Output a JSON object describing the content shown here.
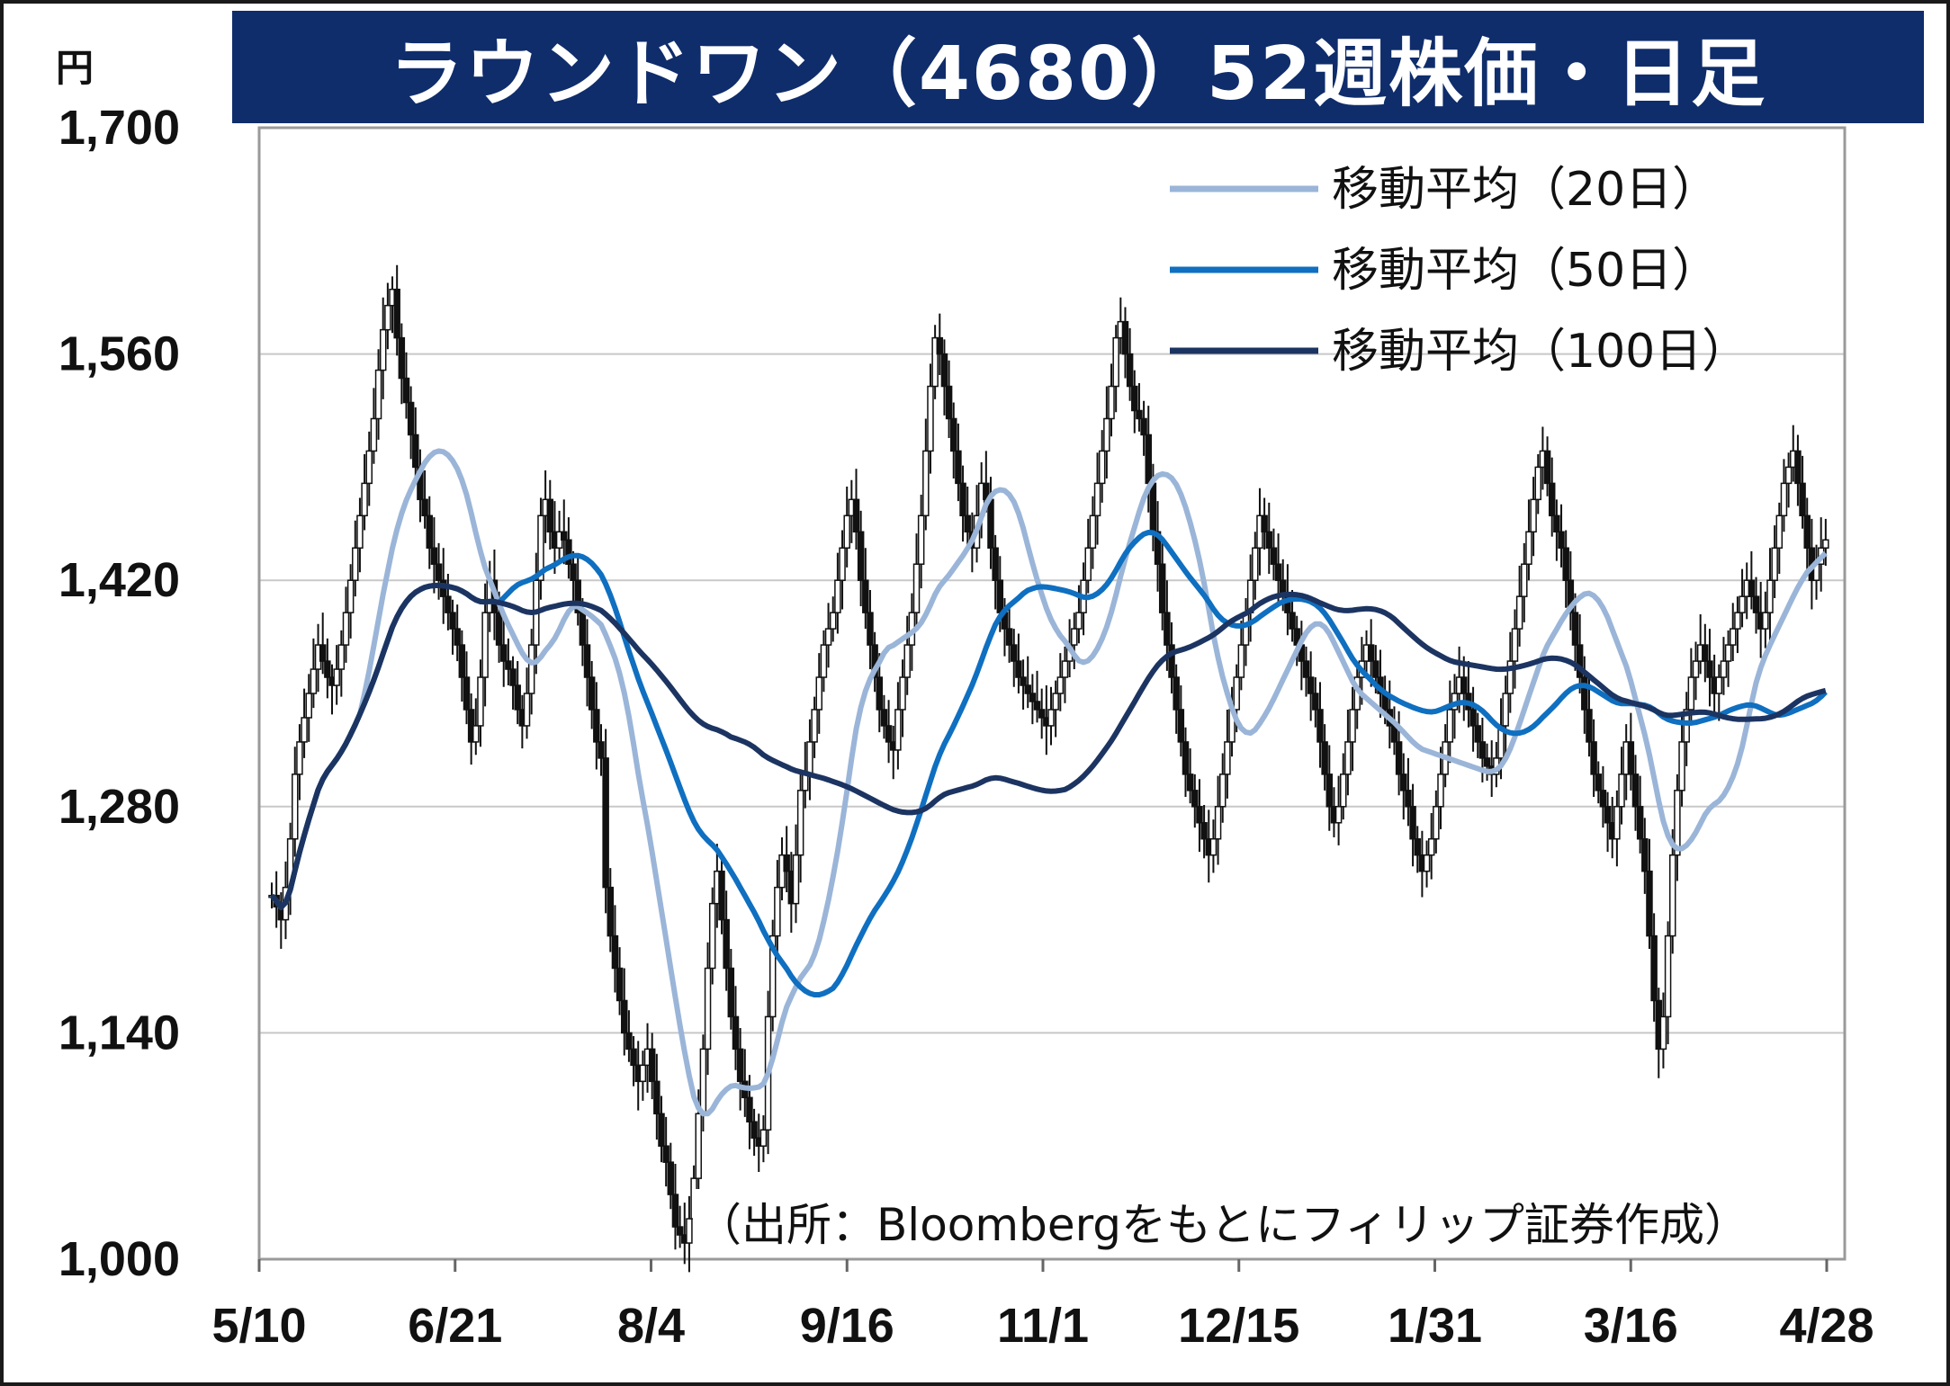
{
  "header": {
    "title": "ラウンドワン（4680）52週株価・日足",
    "unit": "円",
    "source": "（出所：Bloombergをもとにフィリップ証券作成）"
  },
  "colors": {
    "title_bg": "#0f2d6b",
    "ma20": "#9ab5d8",
    "ma50": "#0f6fc0",
    "ma100": "#1c3461",
    "candle": "#111111",
    "grid": "#c8c8c8"
  },
  "chart_data": {
    "type": "candlestick",
    "ylim": [
      1000,
      1700
    ],
    "yticks": [
      "1,700",
      "1,560",
      "1,420",
      "1,280",
      "1,140",
      "1,000"
    ],
    "ytick_values": [
      1700,
      1560,
      1420,
      1280,
      1140,
      1000
    ],
    "xticks": [
      "5/10",
      "6/21",
      "8/4",
      "9/16",
      "11/1",
      "12/15",
      "1/31",
      "3/16",
      "4/28"
    ],
    "grid": "horizontal",
    "legend": {
      "placement": "top-right",
      "entries": [
        "移動平均（20日）",
        "移動平均（50日）",
        "移動平均（100日）"
      ]
    },
    "closes": [
      1225,
      1218,
      1210,
      1230,
      1260,
      1300,
      1320,
      1335,
      1350,
      1365,
      1380,
      1370,
      1360,
      1355,
      1365,
      1380,
      1400,
      1420,
      1440,
      1460,
      1480,
      1500,
      1520,
      1550,
      1575,
      1590,
      1600,
      1570,
      1545,
      1530,
      1510,
      1490,
      1470,
      1460,
      1440,
      1430,
      1420,
      1410,
      1400,
      1390,
      1380,
      1360,
      1340,
      1320,
      1330,
      1360,
      1400,
      1420,
      1400,
      1380,
      1370,
      1365,
      1355,
      1340,
      1330,
      1350,
      1380,
      1420,
      1460,
      1470,
      1450,
      1440,
      1450,
      1445,
      1430,
      1420,
      1400,
      1380,
      1360,
      1340,
      1320,
      1310,
      1230,
      1200,
      1180,
      1160,
      1140,
      1130,
      1120,
      1110,
      1120,
      1130,
      1110,
      1090,
      1070,
      1060,
      1040,
      1020,
      1015,
      1010,
      1025,
      1050,
      1090,
      1130,
      1180,
      1220,
      1240,
      1210,
      1180,
      1150,
      1130,
      1110,
      1100,
      1085,
      1075,
      1070,
      1080,
      1150,
      1200,
      1230,
      1250,
      1240,
      1220,
      1250,
      1290,
      1300,
      1320,
      1340,
      1360,
      1380,
      1390,
      1400,
      1420,
      1440,
      1460,
      1470,
      1450,
      1420,
      1400,
      1380,
      1360,
      1340,
      1330,
      1320,
      1315,
      1340,
      1360,
      1380,
      1400,
      1430,
      1460,
      1500,
      1540,
      1570,
      1560,
      1540,
      1520,
      1500,
      1480,
      1460,
      1450,
      1440,
      1460,
      1480,
      1470,
      1440,
      1420,
      1400,
      1390,
      1380,
      1370,
      1360,
      1355,
      1350,
      1345,
      1340,
      1335,
      1330,
      1340,
      1350,
      1360,
      1370,
      1380,
      1390,
      1400,
      1420,
      1440,
      1460,
      1480,
      1500,
      1520,
      1540,
      1570,
      1580,
      1560,
      1540,
      1525,
      1520,
      1510,
      1480,
      1450,
      1430,
      1400,
      1380,
      1360,
      1340,
      1320,
      1300,
      1290,
      1280,
      1270,
      1260,
      1250,
      1260,
      1280,
      1300,
      1320,
      1340,
      1360,
      1380,
      1400,
      1420,
      1440,
      1460,
      1450,
      1440,
      1430,
      1420,
      1410,
      1400,
      1390,
      1380,
      1370,
      1360,
      1350,
      1340,
      1320,
      1300,
      1280,
      1270,
      1280,
      1300,
      1320,
      1340,
      1360,
      1370,
      1380,
      1370,
      1360,
      1350,
      1340,
      1330,
      1320,
      1300,
      1290,
      1280,
      1260,
      1250,
      1240,
      1250,
      1260,
      1280,
      1300,
      1320,
      1340,
      1350,
      1360,
      1350,
      1340,
      1330,
      1320,
      1310,
      1305,
      1300,
      1310,
      1330,
      1350,
      1370,
      1390,
      1410,
      1430,
      1450,
      1470,
      1490,
      1500,
      1480,
      1460,
      1450,
      1440,
      1420,
      1400,
      1380,
      1360,
      1340,
      1320,
      1300,
      1290,
      1280,
      1270,
      1260,
      1280,
      1300,
      1320,
      1300,
      1280,
      1260,
      1240,
      1200,
      1160,
      1130,
      1150,
      1200,
      1250,
      1290,
      1320,
      1340,
      1360,
      1370,
      1380,
      1370,
      1360,
      1350,
      1360,
      1370,
      1380,
      1390,
      1400,
      1410,
      1420,
      1410,
      1400,
      1390,
      1400,
      1420,
      1440,
      1460,
      1480,
      1490,
      1500,
      1480,
      1460,
      1440,
      1420,
      1430,
      1440,
      1445
    ]
  }
}
